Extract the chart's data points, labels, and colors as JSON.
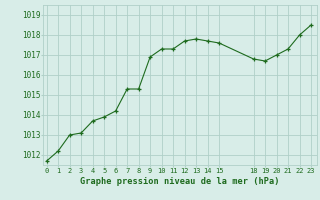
{
  "hours": [
    0,
    1,
    2,
    3,
    4,
    5,
    6,
    7,
    8,
    9,
    10,
    11,
    12,
    13,
    14,
    15,
    18,
    19,
    20,
    21,
    22,
    23
  ],
  "pressure": [
    1011.7,
    1012.2,
    1013.0,
    1013.1,
    1013.7,
    1013.9,
    1014.2,
    1015.3,
    1015.3,
    1016.9,
    1017.3,
    1017.3,
    1017.7,
    1017.8,
    1017.7,
    1017.6,
    1016.8,
    1016.7,
    1017.0,
    1017.3,
    1018.0,
    1018.5
  ],
  "line_color": "#1e6b1e",
  "marker_color": "#1e6b1e",
  "bg_color": "#d8ede8",
  "grid_color": "#b0d0c8",
  "axis_label_color": "#1e6b1e",
  "title": "Graphe pression niveau de la mer (hPa)",
  "ylim_min": 1011.5,
  "ylim_max": 1019.5,
  "xlim_min": -0.3,
  "xlim_max": 23.5,
  "yticks": [
    1012,
    1013,
    1014,
    1015,
    1016,
    1017,
    1018,
    1019
  ],
  "xticks": [
    0,
    1,
    2,
    3,
    4,
    5,
    6,
    7,
    8,
    9,
    10,
    11,
    12,
    13,
    14,
    15,
    18,
    19,
    20,
    21,
    22,
    23
  ]
}
